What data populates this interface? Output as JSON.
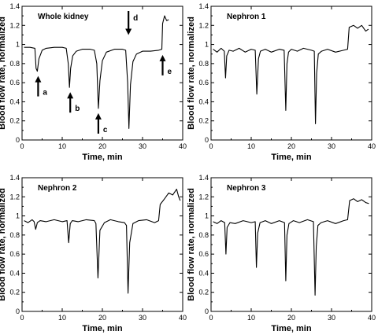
{
  "chart_data": [
    {
      "type": "line",
      "title": "Whole kidney",
      "xlabel": "Time, min",
      "ylabel": "Blood flow rate, normalized",
      "xlim": [
        0,
        40
      ],
      "ylim": [
        0,
        1.4
      ],
      "xticks": [
        "0",
        "10",
        "20",
        "30",
        "40"
      ],
      "yticks": [
        "0",
        "0.2",
        "0.4",
        "0.6",
        "0.8",
        "1",
        "1.2",
        "1.4"
      ],
      "grid": false,
      "series": [
        {
          "x": [
            0.5,
            2.0,
            3.2,
            3.5,
            3.8,
            4.2,
            5.0,
            6.0,
            8.0,
            10.0,
            11.0,
            11.5,
            11.8,
            12.1,
            12.6,
            13.5,
            15.0,
            17.0,
            18.0,
            18.6,
            19.0,
            19.4,
            20.0,
            21.0,
            23.0,
            25.0,
            25.8,
            26.3,
            26.6,
            27.0,
            27.6,
            28.5,
            30.0,
            32.0,
            34.0,
            34.8,
            35.0,
            35.5,
            36.0,
            36.5
          ],
          "y": [
            0.97,
            0.97,
            0.96,
            0.75,
            0.72,
            0.85,
            0.94,
            0.96,
            0.97,
            0.97,
            0.96,
            0.8,
            0.55,
            0.75,
            0.88,
            0.93,
            0.95,
            0.95,
            0.94,
            0.8,
            0.33,
            0.62,
            0.83,
            0.92,
            0.95,
            0.95,
            0.94,
            0.6,
            0.12,
            0.58,
            0.82,
            0.9,
            0.93,
            0.93,
            0.94,
            0.95,
            1.22,
            1.3,
            1.25,
            1.26
          ]
        }
      ],
      "annotations": [
        {
          "label": "a",
          "x": 4.0,
          "direction": "up"
        },
        {
          "label": "b",
          "x": 12.0,
          "direction": "up"
        },
        {
          "label": "c",
          "x": 19.0,
          "direction": "up"
        },
        {
          "label": "d",
          "x": 26.5,
          "direction": "down"
        },
        {
          "label": "e",
          "x": 35.0,
          "direction": "up"
        }
      ]
    },
    {
      "type": "line",
      "title": "Nephron 1",
      "xlabel": "Time, min",
      "ylabel": "Blood flow rate, normalized",
      "xlim": [
        0,
        40
      ],
      "ylim": [
        0,
        1.4
      ],
      "xticks": [
        "0",
        "10",
        "20",
        "30",
        "40"
      ],
      "yticks": [
        "0",
        "0.2",
        "0.4",
        "0.6",
        "0.8",
        "1",
        "1.2",
        "1.4"
      ],
      "grid": false,
      "series": [
        {
          "x": [
            0.5,
            1.5,
            2.5,
            3.3,
            3.6,
            3.9,
            4.5,
            5.5,
            7.0,
            8.5,
            10.0,
            11.0,
            11.4,
            11.8,
            12.3,
            13.5,
            15.0,
            17.0,
            18.2,
            18.6,
            18.9,
            19.3,
            20.0,
            21.5,
            23.0,
            25.0,
            25.7,
            26.0,
            26.3,
            26.7,
            27.5,
            29.0,
            31.0,
            33.0,
            34.0,
            34.4,
            35.5,
            36.5,
            37.5,
            38.5,
            39.2
          ],
          "y": [
            0.95,
            0.92,
            0.96,
            0.93,
            0.65,
            0.88,
            0.94,
            0.93,
            0.96,
            0.92,
            0.95,
            0.94,
            0.48,
            0.85,
            0.93,
            0.95,
            0.92,
            0.95,
            0.94,
            0.31,
            0.8,
            0.92,
            0.95,
            0.93,
            0.96,
            0.94,
            0.93,
            0.17,
            0.7,
            0.9,
            0.93,
            0.95,
            0.92,
            0.94,
            0.95,
            1.18,
            1.2,
            1.17,
            1.2,
            1.14,
            1.16
          ]
        }
      ]
    },
    {
      "type": "line",
      "title": "Nephron 2",
      "xlabel": "Time, min",
      "ylabel": "Blood flow rate, normalized",
      "xlim": [
        0,
        40
      ],
      "ylim": [
        0,
        1.4
      ],
      "xticks": [
        "0",
        "10",
        "20",
        "30",
        "40"
      ],
      "yticks": [
        "0",
        "0.2",
        "0.4",
        "0.6",
        "0.8",
        "1",
        "1.2",
        "1.4"
      ],
      "grid": false,
      "series": [
        {
          "x": [
            0.5,
            1.5,
            2.5,
            3.0,
            3.4,
            3.8,
            4.5,
            6.0,
            8.0,
            10.0,
            11.2,
            11.6,
            12.0,
            12.5,
            14.0,
            16.0,
            18.0,
            18.4,
            18.9,
            19.4,
            20.5,
            22.0,
            24.0,
            25.5,
            26.0,
            26.4,
            26.8,
            27.6,
            29.0,
            31.0,
            33.0,
            34.0,
            34.4,
            35.5,
            36.5,
            37.5,
            38.5,
            39.0,
            39.4
          ],
          "y": [
            0.95,
            0.93,
            0.96,
            0.94,
            0.86,
            0.93,
            0.95,
            0.94,
            0.96,
            0.94,
            0.95,
            0.72,
            0.92,
            0.95,
            0.94,
            0.96,
            0.95,
            0.92,
            0.35,
            0.85,
            0.93,
            0.96,
            0.94,
            0.93,
            0.9,
            0.19,
            0.72,
            0.92,
            0.95,
            0.96,
            0.93,
            0.95,
            1.12,
            1.18,
            1.24,
            1.22,
            1.28,
            1.2,
            1.16
          ]
        }
      ]
    },
    {
      "type": "line",
      "title": "Nephron 3",
      "xlabel": "Time, min",
      "ylabel": "Blood flow rate, normalized",
      "xlim": [
        0,
        40
      ],
      "ylim": [
        0,
        1.4
      ],
      "xticks": [
        "0",
        "10",
        "20",
        "30",
        "40"
      ],
      "yticks": [
        "0",
        "0.2",
        "0.4",
        "0.6",
        "0.8",
        "1",
        "1.2",
        "1.4"
      ],
      "grid": false,
      "series": [
        {
          "x": [
            0.5,
            1.5,
            2.5,
            3.4,
            3.7,
            4.0,
            4.7,
            6.0,
            8.0,
            10.0,
            11.0,
            11.3,
            11.6,
            12.2,
            13.5,
            15.0,
            17.0,
            18.3,
            18.6,
            18.9,
            19.4,
            20.5,
            22.0,
            24.0,
            25.5,
            25.9,
            26.2,
            26.6,
            27.4,
            29.0,
            31.0,
            33.0,
            34.0,
            34.5,
            35.5,
            36.5,
            37.5,
            38.5,
            39.3
          ],
          "y": [
            0.94,
            0.92,
            0.95,
            0.93,
            0.6,
            0.88,
            0.93,
            0.92,
            0.95,
            0.93,
            0.94,
            0.46,
            0.82,
            0.93,
            0.95,
            0.92,
            0.95,
            0.93,
            0.32,
            0.8,
            0.92,
            0.95,
            0.93,
            0.96,
            0.94,
            0.17,
            0.68,
            0.9,
            0.93,
            0.95,
            0.92,
            0.95,
            0.96,
            1.16,
            1.18,
            1.15,
            1.17,
            1.14,
            1.13
          ]
        }
      ]
    }
  ]
}
